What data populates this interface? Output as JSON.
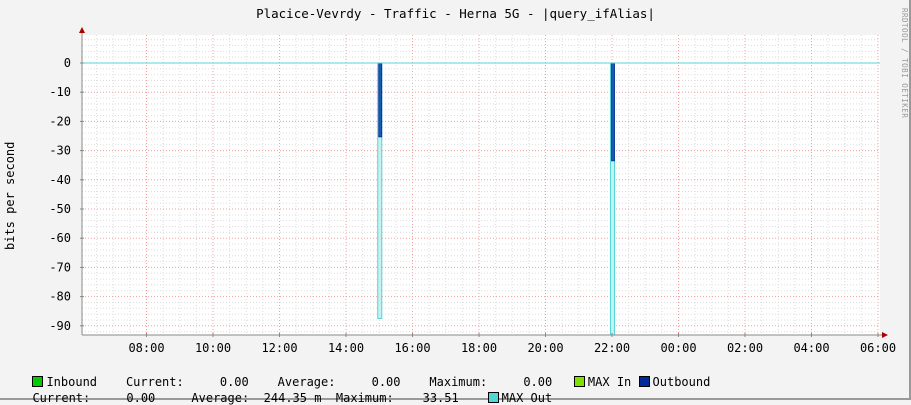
{
  "chart_data": {
    "type": "area",
    "title": "Placice-Vevrdy - Traffic - Herna 5G - |query_ifAlias|",
    "ylabel": "bits per second",
    "xlabel": "",
    "watermark": "RRDTOOL / TOBI OETIKER",
    "xlim": [
      "06:00",
      "06:00 (+1d)"
    ],
    "ylim": [
      -93,
      9.6
    ],
    "grid": true,
    "x_ticks": [
      "08:00",
      "10:00",
      "12:00",
      "14:00",
      "16:00",
      "18:00",
      "20:00",
      "22:00",
      "00:00",
      "02:00",
      "04:00",
      "06:00"
    ],
    "y_ticks": [
      "0",
      "-10",
      "-20",
      "-30",
      "-40",
      "-50",
      "-60",
      "-70",
      "-80",
      "-90"
    ],
    "series": [
      {
        "name": "Inbound",
        "color": "#00cc00",
        "points": [],
        "stats": {
          "current_label": "Current:",
          "current": "0.00",
          "average_label": "Average:",
          "average": "0.00",
          "maximum_label": "Maximum:",
          "maximum": "0.00"
        }
      },
      {
        "name": "MAX In",
        "color": "#7ee000",
        "points": []
      },
      {
        "name": "Outbound",
        "color": "#002a97",
        "points": [
          {
            "x": "15:00",
            "y": -25.3
          },
          {
            "x": "22:00",
            "y": -33.51
          }
        ],
        "stats": {
          "current_label": "Current:",
          "current": "0.00",
          "average_label": "Average:",
          "average": "244.35 m",
          "maximum_label": "Maximum:",
          "maximum": "33.51"
        }
      },
      {
        "name": "MAX Out",
        "color": "#55d6d6",
        "points": [
          {
            "x": "15:00",
            "y": -87.5
          },
          {
            "x": "22:00",
            "y": -95
          }
        ]
      }
    ]
  }
}
